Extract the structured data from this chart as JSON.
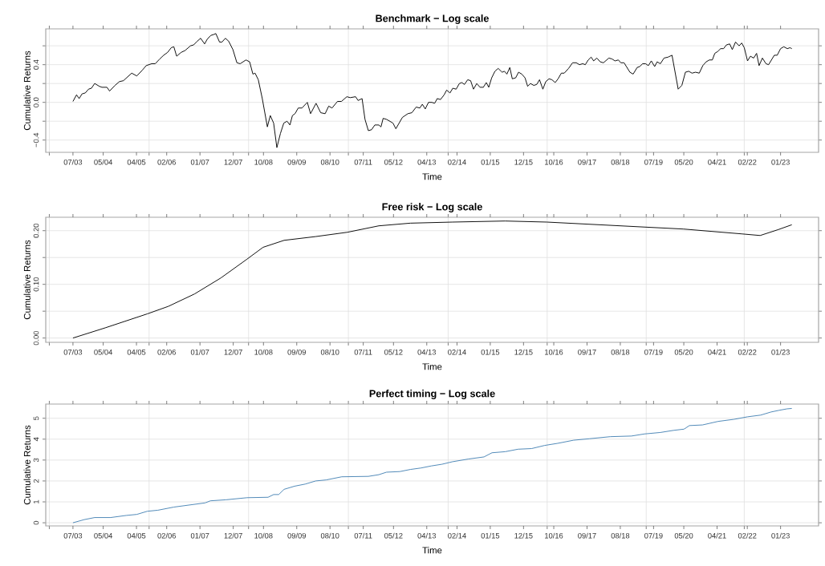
{
  "chart_data": [
    {
      "type": "line",
      "title": "Benchmark − Log scale",
      "xlabel": "Time",
      "ylabel": "Cumulative Returns",
      "color": "#000000",
      "grid": true,
      "xlim": [
        "2002-10-01",
        "2024-01-17"
      ],
      "ylim": [
        -0.53,
        0.78
      ],
      "xticks": [
        {
          "value": "2002-11-06",
          "label": null
        },
        {
          "value": "2005-08-06",
          "label": null
        },
        {
          "value": "2008-05-03",
          "label": null
        },
        {
          "value": "2011-02-03",
          "label": null
        },
        {
          "value": "2013-11-03",
          "label": null
        },
        {
          "value": "2016-07-24",
          "label": null
        },
        {
          "value": "2019-04-17",
          "label": null
        },
        {
          "value": "2022-01-01",
          "label": null
        },
        {
          "value": "2003-07",
          "label": "07/03"
        },
        {
          "value": "2004-05",
          "label": "05/04"
        },
        {
          "value": "2005-04",
          "label": "04/05"
        },
        {
          "value": "2006-02",
          "label": "02/06"
        },
        {
          "value": "2007-01",
          "label": "01/07"
        },
        {
          "value": "2007-12",
          "label": "12/07"
        },
        {
          "value": "2008-10",
          "label": "10/08"
        },
        {
          "value": "2009-09",
          "label": "09/09"
        },
        {
          "value": "2010-08",
          "label": "08/10"
        },
        {
          "value": "2011-07",
          "label": "07/11"
        },
        {
          "value": "2012-05",
          "label": "05/12"
        },
        {
          "value": "2013-04",
          "label": "04/13"
        },
        {
          "value": "2014-02",
          "label": "02/14"
        },
        {
          "value": "2015-01",
          "label": "01/15"
        },
        {
          "value": "2015-12",
          "label": "12/15"
        },
        {
          "value": "2016-10",
          "label": "10/16"
        },
        {
          "value": "2017-09",
          "label": "09/17"
        },
        {
          "value": "2018-08",
          "label": "08/18"
        },
        {
          "value": "2019-07",
          "label": "07/19"
        },
        {
          "value": "2020-05",
          "label": "05/20"
        },
        {
          "value": "2021-04",
          "label": "04/21"
        },
        {
          "value": "2022-02",
          "label": "02/22"
        },
        {
          "value": "2023-01",
          "label": "01/23"
        }
      ],
      "yticks": [
        {
          "value": -0.4,
          "label": "−0.4"
        },
        {
          "value": -0.2,
          "label": null
        },
        {
          "value": 0.0,
          "label": "0.0"
        },
        {
          "value": 0.2,
          "label": null
        },
        {
          "value": 0.4,
          "label": "0.4"
        },
        {
          "value": 0.6,
          "label": null
        }
      ],
      "x": [
        "2003-07-01",
        "2003-08-06",
        "2003-09-02",
        "2003-10-01",
        "2003-11-03",
        "2003-12-05",
        "2004-01-04",
        "2004-02-06",
        "2004-03-22",
        "2004-04-17",
        "2004-06-08",
        "2004-07-04",
        "2004-08-26",
        "2004-10-11",
        "2004-11-20",
        "2005-02-13",
        "2005-04-04",
        "2005-05-26",
        "2005-07-07",
        "2005-09-02",
        "2005-10-07",
        "2005-11-20",
        "2006-01-01",
        "2006-02-09",
        "2006-03-15",
        "2006-04-11",
        "2006-05-09",
        "2006-06-22",
        "2006-08-03",
        "2006-09-25",
        "2006-10-27",
        "2006-12-05",
        "2007-01-07",
        "2007-02-16",
        "2007-03-12",
        "2007-04-17",
        "2007-05-16",
        "2007-06-08",
        "2007-07-14",
        "2007-08-09",
        "2007-09-12",
        "2007-10-14",
        "2007-11-26",
        "2008-01-07",
        "2008-02-09",
        "2008-04-07",
        "2008-05-13",
        "2008-06-15",
        "2008-07-07",
        "2008-08-09",
        "2008-09-18",
        "2008-11-09",
        "2008-12-08",
        "2009-01-11",
        "2009-02-13",
        "2009-03-18",
        "2009-04-21",
        "2009-05-23",
        "2009-06-22",
        "2009-07-17",
        "2009-08-13",
        "2009-09-15",
        "2009-10-21",
        "2009-12-15",
        "2010-01-17",
        "2010-03-12",
        "2010-04-27",
        "2010-06-12",
        "2010-07-17",
        "2010-08-20",
        "2010-10-14",
        "2010-11-23",
        "2011-01-17",
        "2011-02-20",
        "2011-04-14",
        "2011-05-09",
        "2011-06-18",
        "2011-07-17",
        "2011-08-20",
        "2011-09-22",
        "2011-10-24",
        "2011-12-05",
        "2011-12-25",
        "2012-01-17",
        "2012-02-20",
        "2012-04-24",
        "2012-05-23",
        "2012-07-27",
        "2012-09-22",
        "2012-11-03",
        "2012-12-15",
        "2013-01-21",
        "2013-02-16",
        "2013-03-15",
        "2013-04-17",
        "2013-05-20",
        "2013-06-18",
        "2013-07-14",
        "2013-08-16",
        "2013-09-22",
        "2013-10-17",
        "2013-11-20",
        "2013-12-18",
        "2014-01-21",
        "2014-02-23",
        "2014-03-18",
        "2014-04-14",
        "2014-05-16",
        "2014-06-15",
        "2014-07-14",
        "2014-08-16",
        "2014-09-18",
        "2014-10-21",
        "2014-11-20",
        "2014-12-15",
        "2015-01-14",
        "2015-02-16",
        "2015-03-18",
        "2015-04-27",
        "2015-05-20",
        "2015-06-15",
        "2015-07-14",
        "2015-08-09",
        "2015-09-12",
        "2015-10-11",
        "2015-11-13",
        "2015-12-15",
        "2016-01-11",
        "2016-02-09",
        "2016-03-12",
        "2016-04-11",
        "2016-05-09",
        "2016-06-12",
        "2016-07-11",
        "2016-08-13",
        "2016-09-12",
        "2016-10-14",
        "2016-11-13",
        "2016-12-15",
        "2017-01-14",
        "2017-02-26",
        "2017-04-07",
        "2017-05-13",
        "2017-06-15",
        "2017-07-17",
        "2017-08-13",
        "2017-09-12",
        "2017-10-11",
        "2017-11-06",
        "2017-12-08",
        "2018-01-11",
        "2018-02-13",
        "2018-04-07",
        "2018-05-09",
        "2018-06-08",
        "2018-07-11",
        "2018-08-06",
        "2018-09-08",
        "2018-11-06",
        "2018-12-08",
        "2019-01-17",
        "2019-02-13",
        "2019-03-12",
        "2019-04-11",
        "2019-05-09",
        "2019-06-08",
        "2019-07-11",
        "2019-08-06",
        "2019-09-08",
        "2019-10-14",
        "2019-11-23",
        "2020-01-04",
        "2020-03-05",
        "2020-04-11",
        "2020-05-16",
        "2020-06-18",
        "2020-07-21",
        "2020-08-26",
        "2020-10-04",
        "2020-11-09",
        "2020-12-12",
        "2021-01-14",
        "2021-02-13",
        "2021-03-08",
        "2021-04-07",
        "2021-05-06",
        "2021-06-05",
        "2021-07-04",
        "2021-08-06",
        "2021-09-02",
        "2021-10-04",
        "2021-11-09",
        "2021-12-05",
        "2022-01-01",
        "2022-02-03",
        "2022-03-02",
        "2022-04-04",
        "2022-05-03",
        "2022-05-26",
        "2022-07-01",
        "2022-08-06",
        "2022-09-02",
        "2022-10-27",
        "2022-11-26",
        "2023-01-01",
        "2023-02-03",
        "2023-03-08",
        "2023-04-04",
        "2023-04-21"
      ],
      "values": [
        0.01,
        0.08,
        0.04,
        0.09,
        0.1,
        0.14,
        0.15,
        0.2,
        0.17,
        0.16,
        0.16,
        0.12,
        0.18,
        0.22,
        0.23,
        0.31,
        0.28,
        0.34,
        0.39,
        0.41,
        0.41,
        0.46,
        0.5,
        0.53,
        0.58,
        0.59,
        0.49,
        0.53,
        0.55,
        0.6,
        0.61,
        0.65,
        0.68,
        0.62,
        0.67,
        0.71,
        0.72,
        0.73,
        0.64,
        0.64,
        0.68,
        0.65,
        0.56,
        0.42,
        0.41,
        0.45,
        0.43,
        0.3,
        0.31,
        0.24,
        0.04,
        -0.26,
        -0.14,
        -0.22,
        -0.48,
        -0.33,
        -0.22,
        -0.2,
        -0.24,
        -0.14,
        -0.12,
        -0.06,
        -0.06,
        0.0,
        -0.12,
        -0.01,
        -0.11,
        -0.12,
        -0.04,
        -0.06,
        0.01,
        0.01,
        0.06,
        0.05,
        0.06,
        0.02,
        0.04,
        -0.18,
        -0.3,
        -0.29,
        -0.24,
        -0.24,
        -0.26,
        -0.17,
        -0.18,
        -0.22,
        -0.28,
        -0.16,
        -0.12,
        -0.11,
        -0.05,
        -0.06,
        -0.02,
        -0.07,
        0.0,
        0.0,
        -0.01,
        0.04,
        0.03,
        0.08,
        0.13,
        0.1,
        0.15,
        0.14,
        0.2,
        0.21,
        0.19,
        0.24,
        0.23,
        0.14,
        0.2,
        0.16,
        0.16,
        0.21,
        0.16,
        0.26,
        0.33,
        0.36,
        0.32,
        0.33,
        0.3,
        0.37,
        0.25,
        0.26,
        0.32,
        0.3,
        0.26,
        0.17,
        0.2,
        0.18,
        0.19,
        0.24,
        0.14,
        0.22,
        0.25,
        0.24,
        0.21,
        0.25,
        0.31,
        0.31,
        0.36,
        0.42,
        0.42,
        0.4,
        0.41,
        0.4,
        0.45,
        0.48,
        0.44,
        0.47,
        0.43,
        0.42,
        0.47,
        0.46,
        0.44,
        0.45,
        0.42,
        0.42,
        0.32,
        0.3,
        0.37,
        0.38,
        0.41,
        0.41,
        0.39,
        0.44,
        0.38,
        0.43,
        0.41,
        0.47,
        0.48,
        0.5,
        0.14,
        0.18,
        0.32,
        0.33,
        0.31,
        0.32,
        0.31,
        0.39,
        0.43,
        0.45,
        0.45,
        0.52,
        0.54,
        0.57,
        0.57,
        0.61,
        0.62,
        0.56,
        0.64,
        0.6,
        0.63,
        0.58,
        0.44,
        0.49,
        0.47,
        0.52,
        0.39,
        0.47,
        0.41,
        0.4,
        0.5,
        0.5,
        0.57,
        0.59,
        0.57,
        0.58,
        0.57
      ]
    },
    {
      "type": "line",
      "title": "Free risk − Log scale",
      "xlabel": "Time",
      "ylabel": "Cumulative Returns",
      "color": "#000000",
      "grid": true,
      "xlim": [
        "2002-10-01",
        "2024-01-17"
      ],
      "ylim": [
        -0.008,
        0.225
      ],
      "xticks": [
        {
          "value": "2002-11-06",
          "label": null
        },
        {
          "value": "2005-08-06",
          "label": null
        },
        {
          "value": "2008-05-03",
          "label": null
        },
        {
          "value": "2011-02-03",
          "label": null
        },
        {
          "value": "2013-11-03",
          "label": null
        },
        {
          "value": "2016-07-24",
          "label": null
        },
        {
          "value": "2019-04-17",
          "label": null
        },
        {
          "value": "2022-01-01",
          "label": null
        },
        {
          "value": "2003-07",
          "label": "07/03"
        },
        {
          "value": "2004-05",
          "label": "05/04"
        },
        {
          "value": "2005-04",
          "label": "04/05"
        },
        {
          "value": "2006-02",
          "label": "02/06"
        },
        {
          "value": "2007-01",
          "label": "01/07"
        },
        {
          "value": "2007-12",
          "label": "12/07"
        },
        {
          "value": "2008-10",
          "label": "10/08"
        },
        {
          "value": "2009-09",
          "label": "09/09"
        },
        {
          "value": "2010-08",
          "label": "08/10"
        },
        {
          "value": "2011-07",
          "label": "07/11"
        },
        {
          "value": "2012-05",
          "label": "05/12"
        },
        {
          "value": "2013-04",
          "label": "04/13"
        },
        {
          "value": "2014-02",
          "label": "02/14"
        },
        {
          "value": "2015-01",
          "label": "01/15"
        },
        {
          "value": "2015-12",
          "label": "12/15"
        },
        {
          "value": "2016-10",
          "label": "10/16"
        },
        {
          "value": "2017-09",
          "label": "09/17"
        },
        {
          "value": "2018-08",
          "label": "08/18"
        },
        {
          "value": "2019-07",
          "label": "07/19"
        },
        {
          "value": "2020-05",
          "label": "05/20"
        },
        {
          "value": "2021-04",
          "label": "04/21"
        },
        {
          "value": "2022-02",
          "label": "02/22"
        },
        {
          "value": "2023-01",
          "label": "01/23"
        }
      ],
      "yticks": [
        {
          "value": 0.0,
          "label": "0.00"
        },
        {
          "value": 0.05,
          "label": null
        },
        {
          "value": 0.1,
          "label": "0.10"
        },
        {
          "value": 0.15,
          "label": null
        },
        {
          "value": 0.2,
          "label": "0.20"
        }
      ],
      "x": [
        "2003-07-01",
        "2004-05-20",
        "2005-07-17",
        "2006-02-16",
        "2006-11-06",
        "2007-07-27",
        "2008-04-17",
        "2008-09-25",
        "2009-04-24",
        "2010-03-08",
        "2011-01-21",
        "2011-12-05",
        "2012-10-17",
        "2013-12-15",
        "2015-05-26",
        "2016-07-21",
        "2018-04-17",
        "2020-04-27",
        "2021-12-05",
        "2022-06-08",
        "2022-12-08",
        "2023-04-21"
      ],
      "values": [
        0.0,
        0.019,
        0.045,
        0.059,
        0.082,
        0.112,
        0.147,
        0.169,
        0.182,
        0.189,
        0.197,
        0.209,
        0.214,
        0.216,
        0.218,
        0.216,
        0.21,
        0.203,
        0.194,
        0.191,
        0.202,
        0.211
      ]
    },
    {
      "type": "line",
      "title": "Perfect timing − Log scale",
      "xlabel": "Time",
      "ylabel": "Cumulative Returns",
      "color": "#4682b4",
      "grid": true,
      "xlim": [
        "2002-10-01",
        "2024-01-17"
      ],
      "ylim": [
        -0.15,
        5.68
      ],
      "xticks": [
        {
          "value": "2002-11-06",
          "label": null
        },
        {
          "value": "2005-08-06",
          "label": null
        },
        {
          "value": "2008-05-03",
          "label": null
        },
        {
          "value": "2011-02-03",
          "label": null
        },
        {
          "value": "2013-11-03",
          "label": null
        },
        {
          "value": "2016-07-24",
          "label": null
        },
        {
          "value": "2019-04-17",
          "label": null
        },
        {
          "value": "2022-01-01",
          "label": null
        },
        {
          "value": "2003-07",
          "label": "07/03"
        },
        {
          "value": "2004-05",
          "label": "05/04"
        },
        {
          "value": "2005-04",
          "label": "04/05"
        },
        {
          "value": "2006-02",
          "label": "02/06"
        },
        {
          "value": "2007-01",
          "label": "01/07"
        },
        {
          "value": "2007-12",
          "label": "12/07"
        },
        {
          "value": "2008-10",
          "label": "10/08"
        },
        {
          "value": "2009-09",
          "label": "09/09"
        },
        {
          "value": "2010-08",
          "label": "08/10"
        },
        {
          "value": "2011-07",
          "label": "07/11"
        },
        {
          "value": "2012-05",
          "label": "05/12"
        },
        {
          "value": "2013-04",
          "label": "04/13"
        },
        {
          "value": "2014-02",
          "label": "02/14"
        },
        {
          "value": "2015-01",
          "label": "01/15"
        },
        {
          "value": "2015-12",
          "label": "12/15"
        },
        {
          "value": "2016-10",
          "label": "10/16"
        },
        {
          "value": "2017-09",
          "label": "09/17"
        },
        {
          "value": "2018-08",
          "label": "08/18"
        },
        {
          "value": "2019-07",
          "label": "07/19"
        },
        {
          "value": "2020-05",
          "label": "05/20"
        },
        {
          "value": "2021-04",
          "label": "04/21"
        },
        {
          "value": "2022-02",
          "label": "02/22"
        },
        {
          "value": "2023-01",
          "label": "01/23"
        }
      ],
      "yticks": [
        0,
        1,
        2,
        3,
        4,
        5
      ],
      "x": [
        "2003-07-01",
        "2003-10-21",
        "2004-02-06",
        "2004-07-14",
        "2004-12-18",
        "2005-04-04",
        "2005-07-17",
        "2005-11-03",
        "2006-04-11",
        "2006-09-15",
        "2007-02-20",
        "2007-04-14",
        "2007-09-18",
        "2008-04-17",
        "2008-11-16",
        "2009-01-11",
        "2009-03-02",
        "2009-04-24",
        "2009-08-09",
        "2009-11-23",
        "2010-03-08",
        "2010-06-22",
        "2010-11-26",
        "2011-08-20",
        "2011-12-05",
        "2012-02-20",
        "2012-07-04",
        "2012-10-17",
        "2013-02-03",
        "2013-05-16",
        "2013-09-02",
        "2013-12-15",
        "2014-05-23",
        "2014-10-27",
        "2015-01-17",
        "2015-05-26",
        "2015-10-07",
        "2016-02-20",
        "2016-07-01",
        "2016-11-09",
        "2017-04-17",
        "2017-09-22",
        "2018-04-21",
        "2018-11-20",
        "2019-04-01",
        "2019-09-08",
        "2020-01-17",
        "2020-05-03",
        "2020-06-25",
        "2020-11-06",
        "2021-04-11",
        "2021-09-18",
        "2022-02-03",
        "2022-06-12",
        "2022-09-25",
        "2022-12-15",
        "2023-03-05",
        "2023-04-21"
      ],
      "values": [
        0.0,
        0.15,
        0.25,
        0.25,
        0.35,
        0.4,
        0.55,
        0.6,
        0.75,
        0.85,
        0.95,
        1.05,
        1.1,
        1.2,
        1.22,
        1.35,
        1.35,
        1.6,
        1.75,
        1.85,
        2.0,
        2.05,
        2.2,
        2.22,
        2.3,
        2.42,
        2.45,
        2.55,
        2.62,
        2.72,
        2.8,
        2.92,
        3.05,
        3.15,
        3.35,
        3.4,
        3.52,
        3.55,
        3.7,
        3.8,
        3.95,
        4.02,
        4.12,
        4.15,
        4.25,
        4.32,
        4.42,
        4.48,
        4.65,
        4.68,
        4.85,
        4.95,
        5.07,
        5.15,
        5.3,
        5.38,
        5.45,
        5.47
      ]
    }
  ]
}
